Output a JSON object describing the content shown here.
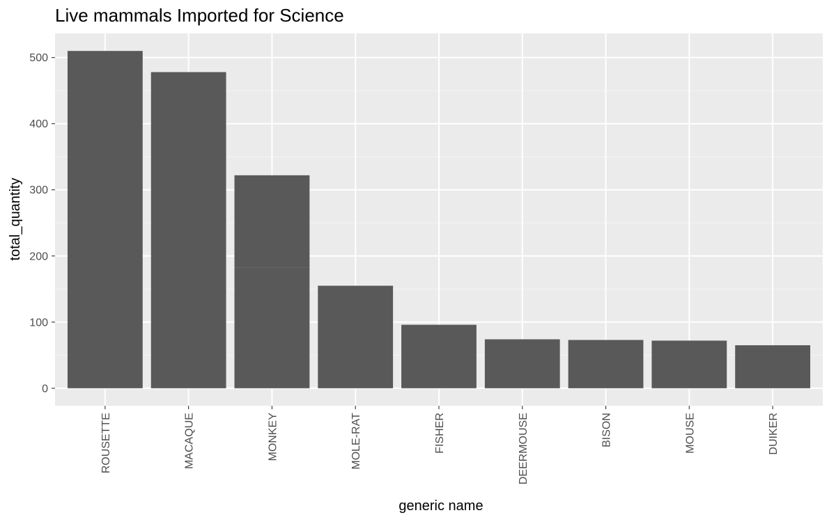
{
  "chart_data": {
    "type": "bar",
    "title": "Live mammals Imported for Science",
    "xlabel": "generic name",
    "ylabel": "total_quantity",
    "categories": [
      "ROUSETTE",
      "MACAQUE",
      "MONKEY",
      "MOLE-RAT",
      "FISHER",
      "DEERMOUSE",
      "BISON",
      "MOUSE",
      "DUIKER"
    ],
    "values": [
      510,
      478,
      322,
      155,
      96,
      74,
      73,
      72,
      65
    ],
    "stack_segments": {
      "MONKEY": [
        182,
        140
      ]
    },
    "yticks": [
      0,
      100,
      200,
      300,
      400,
      500
    ],
    "ylim": [
      -26.5,
      536.5
    ],
    "grid": true,
    "legend": "none",
    "colors": {
      "bar": "#595959",
      "panel": "#ebebeb",
      "grid_major": "#ffffff",
      "grid_minor": "#f4f4f4",
      "tick_label": "#4d4d4d",
      "tick_mark": "#333333"
    }
  }
}
